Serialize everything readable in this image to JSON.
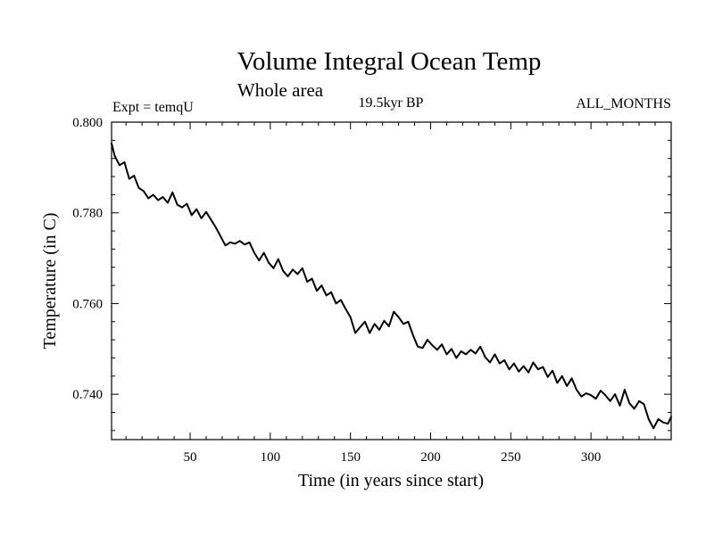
{
  "header": {
    "title": "Volume Integral Ocean Temp",
    "subtitle": "Whole area",
    "expt": "Expt = temqU",
    "period": "19.5kyr BP",
    "months": "ALL_MONTHS"
  },
  "chart_data": {
    "type": "line",
    "title": "Volume Integral Ocean Temp",
    "subtitle": "Whole area",
    "xlabel": "Time (in years since start)",
    "ylabel": "Temperature (in C)",
    "xlim": [
      1,
      350
    ],
    "ylim": [
      0.73,
      0.8
    ],
    "x_ticks": [
      50,
      100,
      150,
      200,
      250,
      300
    ],
    "x_tick_labels": [
      "50",
      "100",
      "150",
      "200",
      "250",
      "300"
    ],
    "y_ticks": [
      0.74,
      0.76,
      0.78,
      0.8
    ],
    "y_tick_labels": [
      "0.740",
      "0.760",
      "0.780",
      "0.800"
    ],
    "grid": false,
    "series": [
      {
        "name": "temqU",
        "x": [
          1,
          3,
          6,
          9,
          12,
          15,
          18,
          21,
          24,
          27,
          30,
          33,
          36,
          39,
          42,
          45,
          48,
          51,
          54,
          57,
          60,
          63,
          66,
          69,
          72,
          75,
          78,
          81,
          84,
          87,
          90,
          93,
          96,
          99,
          102,
          105,
          108,
          111,
          114,
          117,
          120,
          123,
          126,
          129,
          132,
          135,
          138,
          141,
          144,
          147,
          150,
          153,
          156,
          159,
          162,
          165,
          168,
          171,
          174,
          177,
          180,
          183,
          186,
          189,
          192,
          195,
          198,
          201,
          204,
          207,
          210,
          213,
          216,
          219,
          222,
          225,
          228,
          231,
          234,
          237,
          240,
          243,
          246,
          249,
          252,
          255,
          258,
          261,
          264,
          267,
          270,
          273,
          276,
          279,
          282,
          285,
          288,
          291,
          294,
          297,
          300,
          303,
          306,
          309,
          312,
          315,
          318,
          321,
          324,
          327,
          330,
          333,
          336,
          339,
          342,
          345,
          348,
          350
        ],
        "values": [
          0.7953,
          0.7925,
          0.7905,
          0.7912,
          0.7875,
          0.7882,
          0.7855,
          0.7848,
          0.7832,
          0.784,
          0.7828,
          0.7835,
          0.7822,
          0.7845,
          0.7818,
          0.7812,
          0.782,
          0.7795,
          0.7808,
          0.7788,
          0.7802,
          0.7785,
          0.7768,
          0.7748,
          0.7728,
          0.7735,
          0.7732,
          0.7738,
          0.773,
          0.7735,
          0.7712,
          0.7695,
          0.7712,
          0.769,
          0.7678,
          0.7698,
          0.7672,
          0.766,
          0.7675,
          0.7665,
          0.7678,
          0.7648,
          0.7655,
          0.7628,
          0.764,
          0.7618,
          0.7625,
          0.76,
          0.7608,
          0.7588,
          0.757,
          0.7535,
          0.7548,
          0.756,
          0.7535,
          0.7555,
          0.7542,
          0.7562,
          0.755,
          0.7582,
          0.757,
          0.7555,
          0.756,
          0.753,
          0.7505,
          0.7502,
          0.752,
          0.7508,
          0.7498,
          0.751,
          0.7488,
          0.75,
          0.748,
          0.7495,
          0.7488,
          0.7498,
          0.749,
          0.7505,
          0.7482,
          0.747,
          0.7488,
          0.7468,
          0.7475,
          0.7455,
          0.7468,
          0.745,
          0.7462,
          0.7448,
          0.747,
          0.7455,
          0.746,
          0.7438,
          0.7452,
          0.7425,
          0.744,
          0.7418,
          0.7435,
          0.741,
          0.7395,
          0.7402,
          0.7398,
          0.739,
          0.7408,
          0.7398,
          0.7385,
          0.74,
          0.7375,
          0.741,
          0.738,
          0.7368,
          0.7385,
          0.7378,
          0.7345,
          0.7325,
          0.7345,
          0.7338,
          0.7335,
          0.735
        ]
      }
    ]
  }
}
